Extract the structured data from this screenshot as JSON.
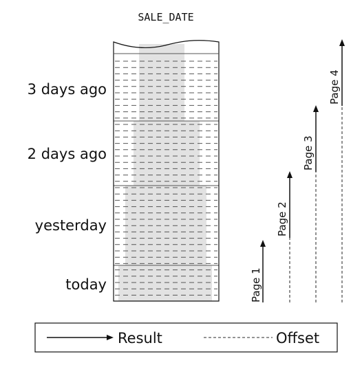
{
  "table": {
    "column_title": "SALE_DATE",
    "rows": [
      {
        "label": "3 days ago"
      },
      {
        "label": "2 days ago"
      },
      {
        "label": "yesterday"
      },
      {
        "label": "today"
      }
    ]
  },
  "pages": [
    {
      "label": "Page 1"
    },
    {
      "label": "Page 2"
    },
    {
      "label": "Page 3"
    },
    {
      "label": "Page 4"
    }
  ],
  "legend": {
    "result_label": "Result",
    "offset_label": "Offset"
  },
  "colors": {
    "ink": "#111111",
    "line": "#555555",
    "highlight": "#e2e2e2"
  }
}
